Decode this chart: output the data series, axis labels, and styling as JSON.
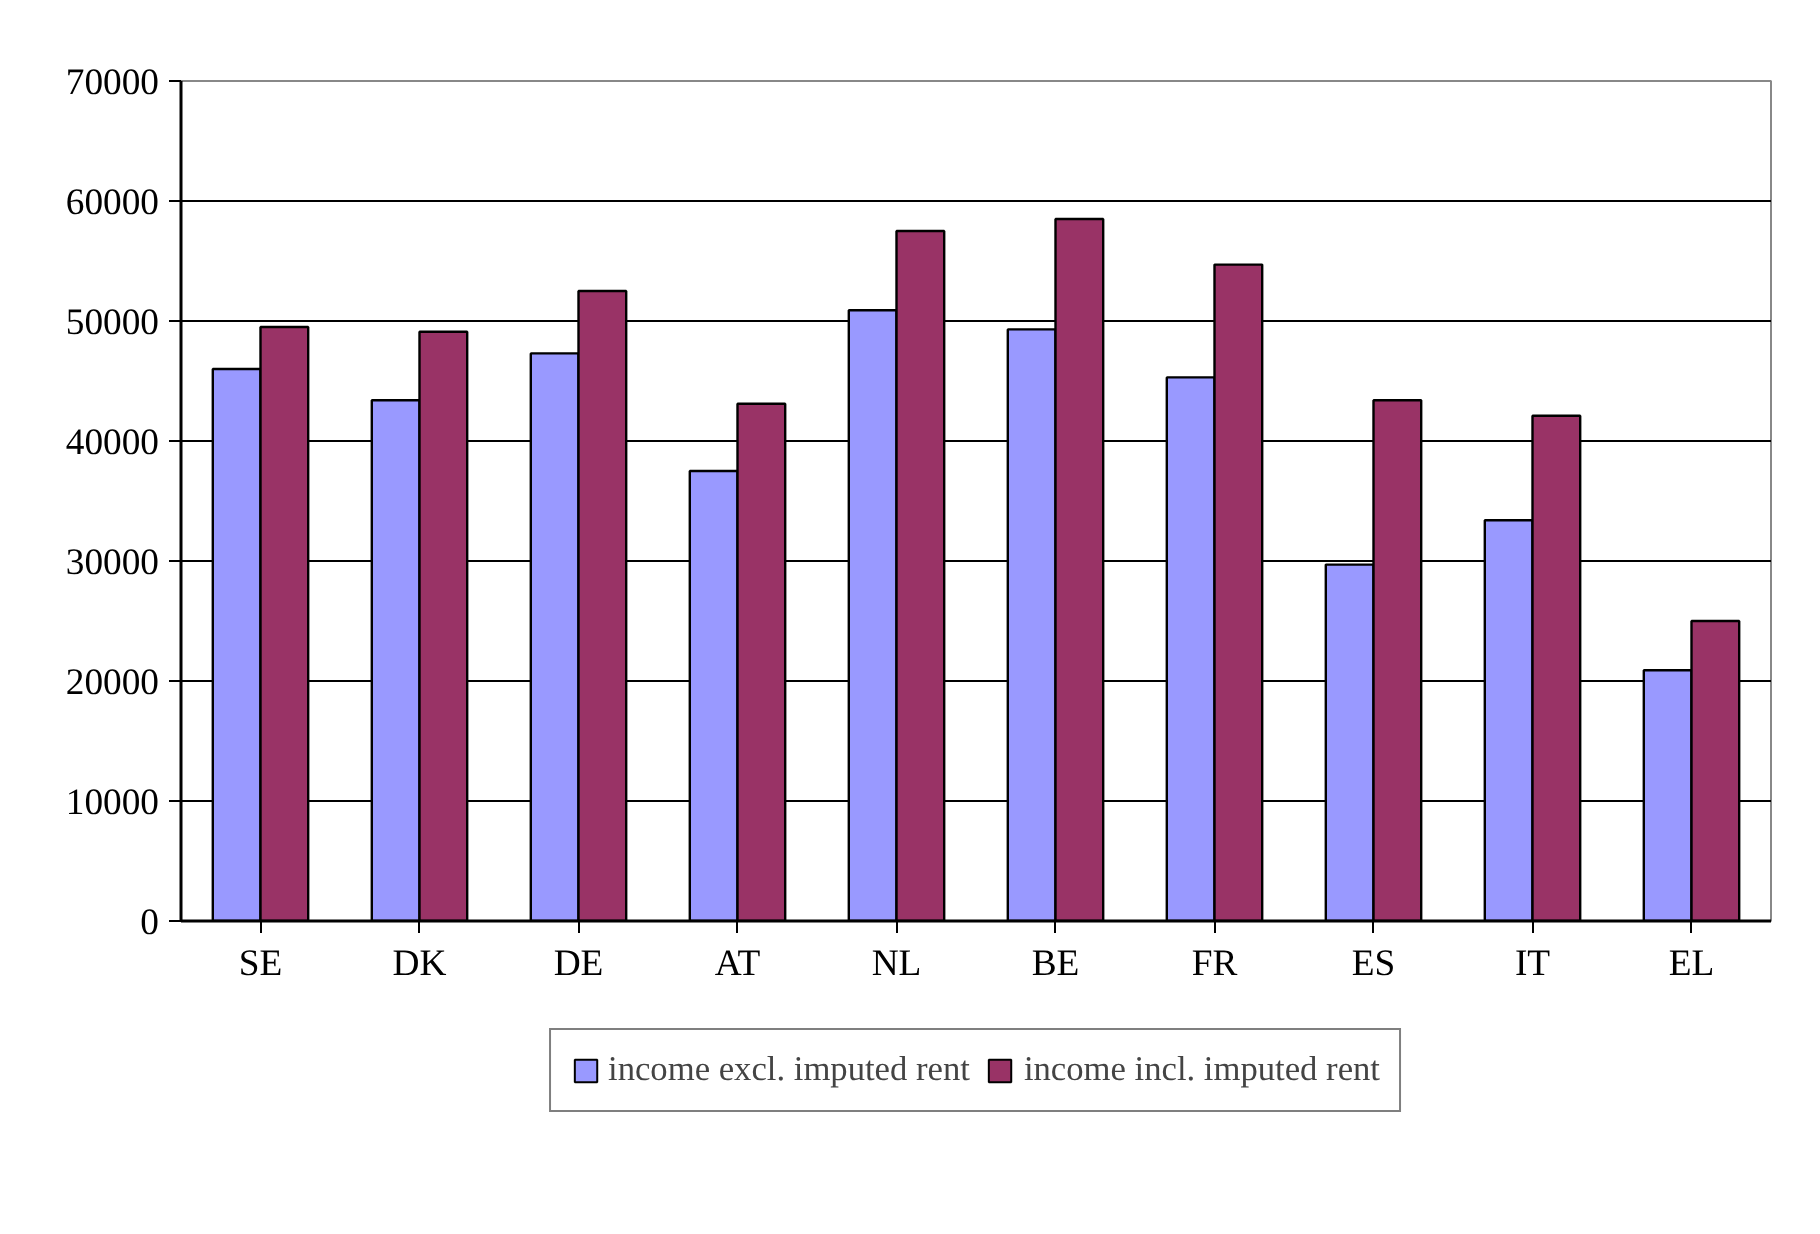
{
  "chart_data": {
    "type": "bar",
    "categories": [
      "SE",
      "DK",
      "DE",
      "AT",
      "NL",
      "BE",
      "FR",
      "ES",
      "IT",
      "EL"
    ],
    "series": [
      {
        "name": "income excl. imputed rent",
        "color": "#9999ff",
        "values": [
          46000,
          43400,
          47300,
          37500,
          50900,
          49300,
          45300,
          29700,
          33400,
          20900
        ]
      },
      {
        "name": "income incl. imputed rent",
        "color": "#993366",
        "values": [
          49500,
          49100,
          52500,
          43100,
          57500,
          58500,
          54700,
          43400,
          42100,
          25000
        ]
      }
    ],
    "ylim": [
      0,
      70000
    ],
    "yticks": [
      0,
      10000,
      20000,
      30000,
      40000,
      50000,
      60000,
      70000
    ],
    "grid": "y",
    "legend": "bottom"
  }
}
